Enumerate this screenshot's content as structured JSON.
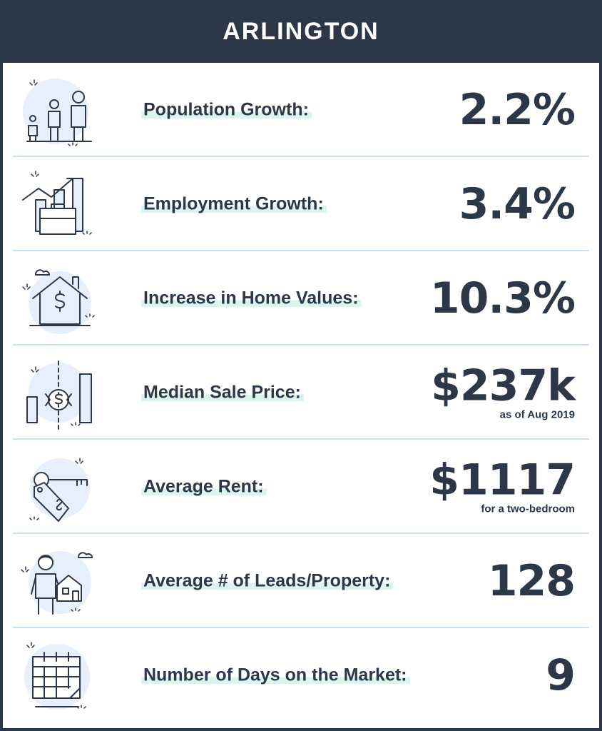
{
  "title": "ARLINGTON",
  "colors": {
    "header_bg": "#2c3748",
    "text": "#2c3748",
    "divider": "#cfe0f3",
    "label_highlight": "#d9f5ee",
    "icon_circle": "#e6effc"
  },
  "rows": [
    {
      "icon": "family-icon",
      "label": "Population Growth:",
      "value": "2.2%",
      "sub": ""
    },
    {
      "icon": "employment-briefcase-icon",
      "label": "Employment Growth:",
      "value": "3.4%",
      "sub": ""
    },
    {
      "icon": "house-dollar-icon",
      "label": "Increase in Home Values:",
      "value": "10.3%",
      "sub": ""
    },
    {
      "icon": "price-chart-icon",
      "label": "Median Sale Price:",
      "value": "$237k",
      "sub": "as  of Aug 2019"
    },
    {
      "icon": "key-tag-icon",
      "label": "Average Rent:",
      "value": "$1117",
      "sub": "for a two-bedroom"
    },
    {
      "icon": "person-house-icon",
      "label": "Average # of Leads/Property:",
      "value": "128",
      "sub": ""
    },
    {
      "icon": "calendar-icon",
      "label": "Number of Days on the Market:",
      "value": "9",
      "sub": ""
    }
  ]
}
